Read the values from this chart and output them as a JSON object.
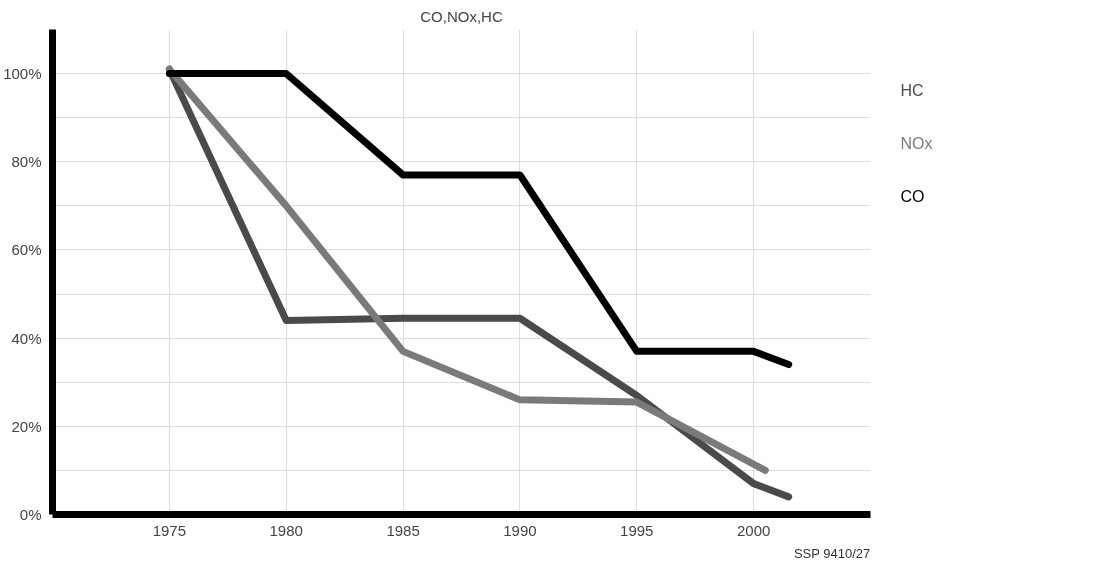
{
  "chart_data": {
    "type": "line",
    "title": "CO,NOx,HC",
    "xlim": [
      1970,
      2005
    ],
    "xticks": [
      1975,
      1980,
      1985,
      1990,
      1995,
      2000
    ],
    "ylim": [
      0,
      110
    ],
    "yticks": [
      {
        "value": 0,
        "label": "0%"
      },
      {
        "value": 10,
        "label": null
      },
      {
        "value": 20,
        "label": "20%"
      },
      {
        "value": 30,
        "label": null
      },
      {
        "value": 40,
        "label": "40%"
      },
      {
        "value": 50,
        "label": null
      },
      {
        "value": 60,
        "label": "60%"
      },
      {
        "value": 70,
        "label": null
      },
      {
        "value": 80,
        "label": "80%"
      },
      {
        "value": 90,
        "label": null
      },
      {
        "value": 100,
        "label": "100%"
      }
    ],
    "grid": true,
    "legend": "right",
    "marker": "none",
    "line_style": "solid",
    "series": [
      {
        "name": "HC",
        "color": "#4a4a4a",
        "x": [
          1975,
          1980,
          1985,
          1990,
          1995,
          2000,
          2001.5
        ],
        "values": [
          101,
          44,
          44.5,
          44.5,
          27,
          7,
          4
        ]
      },
      {
        "name": "NOx",
        "color": "#7a7a7a",
        "x": [
          1975,
          1980,
          1985,
          1990,
          1995,
          2000.5
        ],
        "values": [
          101,
          70,
          37,
          26,
          25.5,
          10
        ]
      },
      {
        "name": "CO",
        "color": "#000000",
        "x": [
          1975,
          1980,
          1985,
          1990,
          1995,
          2000,
          2001.5
        ],
        "values": [
          100,
          100,
          77,
          77,
          37,
          37,
          34
        ]
      }
    ],
    "annotations": [
      "SSP 9410/27"
    ]
  }
}
